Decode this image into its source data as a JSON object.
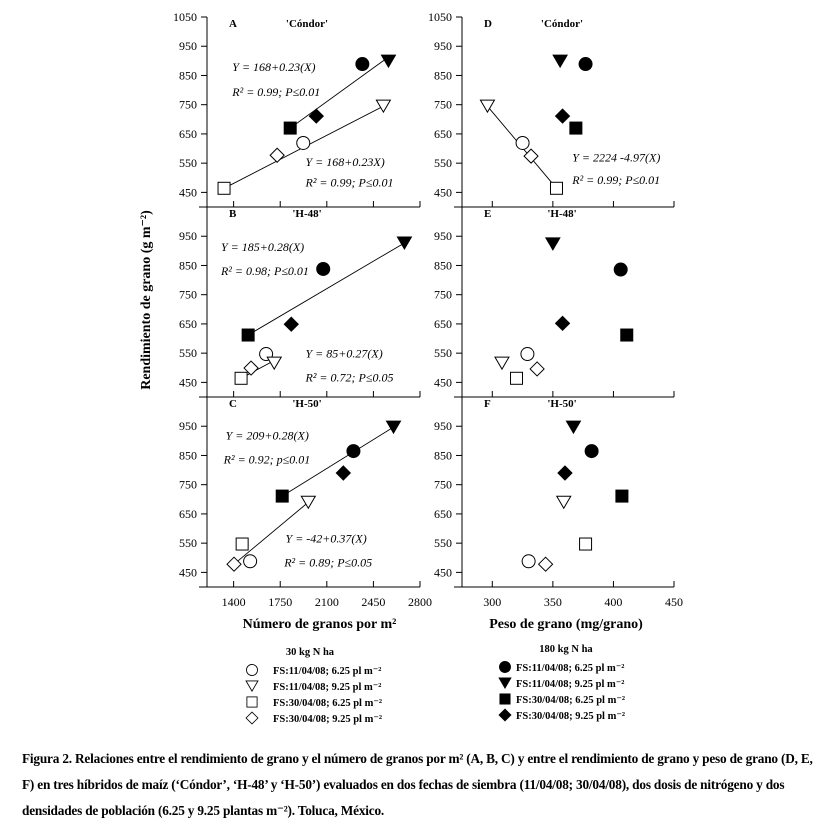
{
  "chart_data": {
    "type": "scatter",
    "ylabel": "Rendimiento de grano (g m⁻²)",
    "ylim": [
      400,
      1050
    ],
    "yticks": [
      450,
      550,
      650,
      750,
      850,
      950,
      1050
    ],
    "series_legend": {
      "low_n": {
        "title": "30 kg N ha",
        "entries": [
          {
            "marker": "circle-open",
            "label": "FS:11/04/08; 6.25 pl m⁻²"
          },
          {
            "marker": "triangle-open",
            "label": "FS:11/04/08; 9.25 pl m⁻²"
          },
          {
            "marker": "square-open",
            "label": "FS:30/04/08; 6.25 pl m⁻²"
          },
          {
            "marker": "diamond-open",
            "label": "FS:30/04/08; 9.25 pl m⁻²"
          }
        ]
      },
      "high_n": {
        "title": "180 kg N ha",
        "entries": [
          {
            "marker": "circle-filled",
            "label": "FS:11/04/08; 6.25 pl m⁻²"
          },
          {
            "marker": "triangle-filled",
            "label": "FS:11/04/08; 9.25 pl m⁻²"
          },
          {
            "marker": "square-filled",
            "label": "FS:30/04/08; 6.25 pl m⁻²"
          },
          {
            "marker": "diamond-filled",
            "label": "FS:30/04/08; 9.25 pl m⁻²"
          }
        ]
      }
    },
    "x_axes": {
      "left": {
        "xlabel": "Número de granos por m²",
        "xlim": [
          1200,
          2800
        ],
        "xticks": [
          1400,
          1750,
          2100,
          2450,
          2800
        ]
      },
      "right": {
        "xlabel": "Peso de grano (mg/grano)",
        "xlim": [
          275,
          450
        ],
        "xticks": [
          300,
          350,
          400,
          450
        ]
      }
    },
    "panels": [
      {
        "id": "A",
        "title": "'Cóndor'",
        "column": "left",
        "row": 0,
        "points": [
          {
            "marker": "circle-open",
            "x": 1923,
            "y": 619
          },
          {
            "marker": "triangle-open",
            "x": 2525,
            "y": 745
          },
          {
            "marker": "square-open",
            "x": 1328,
            "y": 464
          },
          {
            "marker": "diamond-open",
            "x": 1727,
            "y": 577
          },
          {
            "marker": "circle-filled",
            "x": 2367,
            "y": 889
          },
          {
            "marker": "triangle-filled",
            "x": 2563,
            "y": 899
          },
          {
            "marker": "square-filled",
            "x": 1825,
            "y": 670
          },
          {
            "marker": "diamond-filled",
            "x": 2021,
            "y": 711
          }
        ],
        "lines": [
          [
            1825,
            670,
            2563,
            913
          ],
          [
            1328,
            464,
            2525,
            745
          ]
        ],
        "annotations": [
          {
            "text": "Y = 168+0.23(X)",
            "ax": 1390,
            "ay": 865
          },
          {
            "text": "R² = 0.99; P≤0.01",
            "ax": 1390,
            "ay": 780
          },
          {
            "text": "Y = 168+0.23X)",
            "ax": 1940,
            "ay": 540
          },
          {
            "text": "R² = 0.99; P≤0.01",
            "ax": 1940,
            "ay": 470
          }
        ]
      },
      {
        "id": "B",
        "title": "'H-48'",
        "column": "left",
        "row": 1,
        "points": [
          {
            "marker": "circle-open",
            "x": 1644,
            "y": 547
          },
          {
            "marker": "triangle-open",
            "x": 1705,
            "y": 516
          },
          {
            "marker": "square-open",
            "x": 1456,
            "y": 464
          },
          {
            "marker": "diamond-open",
            "x": 1531,
            "y": 499
          },
          {
            "marker": "circle-filled",
            "x": 2073,
            "y": 838
          },
          {
            "marker": "triangle-filled",
            "x": 2683,
            "y": 927
          },
          {
            "marker": "square-filled",
            "x": 1509,
            "y": 612
          },
          {
            "marker": "diamond-filled",
            "x": 1833,
            "y": 649
          }
        ],
        "lines": [
          [
            1509,
            612,
            2683,
            927
          ],
          [
            1456,
            464,
            1705,
            525
          ]
        ],
        "annotations": [
          {
            "text": "Y = 185+0.28(X)",
            "ax": 1305,
            "ay": 900
          },
          {
            "text": "R² = 0.98; P≤0.01",
            "ax": 1305,
            "ay": 817
          },
          {
            "text": "Y = 85+0.27(X)",
            "ax": 1940,
            "ay": 535
          },
          {
            "text": "R² = 0.72; P≤0.05",
            "ax": 1940,
            "ay": 453
          }
        ]
      },
      {
        "id": "C",
        "title": "'H-50'",
        "column": "left",
        "row": 2,
        "points": [
          {
            "marker": "circle-open",
            "x": 1524,
            "y": 488
          },
          {
            "marker": "triangle-open",
            "x": 1961,
            "y": 690
          },
          {
            "marker": "square-open",
            "x": 1464,
            "y": 547
          },
          {
            "marker": "diamond-open",
            "x": 1403,
            "y": 478
          },
          {
            "marker": "circle-filled",
            "x": 2300,
            "y": 865
          },
          {
            "marker": "triangle-filled",
            "x": 2601,
            "y": 947
          },
          {
            "marker": "square-filled",
            "x": 1765,
            "y": 711
          },
          {
            "marker": "diamond-filled",
            "x": 2224,
            "y": 790
          }
        ],
        "lines": [
          [
            1765,
            711,
            2601,
            947
          ],
          [
            1403,
            478,
            1961,
            690
          ]
        ],
        "annotations": [
          {
            "text": "Y = 209+0.28(X)",
            "ax": 1340,
            "ay": 905
          },
          {
            "text": "R² = 0.92; p≤0.01",
            "ax": 1325,
            "ay": 822
          },
          {
            "text": "Y = -42+0.37(X)",
            "ax": 1790,
            "ay": 553
          },
          {
            "text": "R² = 0.89; P≤0.05",
            "ax": 1780,
            "ay": 470
          }
        ]
      },
      {
        "id": "D",
        "title": "'Cóndor'",
        "column": "right",
        "row": 0,
        "points": [
          {
            "marker": "circle-open",
            "x": 325,
            "y": 619
          },
          {
            "marker": "triangle-open",
            "x": 296,
            "y": 745
          },
          {
            "marker": "square-open",
            "x": 353,
            "y": 464
          },
          {
            "marker": "diamond-open",
            "x": 332,
            "y": 574
          },
          {
            "marker": "circle-filled",
            "x": 377,
            "y": 889
          },
          {
            "marker": "triangle-filled",
            "x": 356,
            "y": 899
          },
          {
            "marker": "square-filled",
            "x": 369,
            "y": 670
          },
          {
            "marker": "diamond-filled",
            "x": 358,
            "y": 711
          }
        ],
        "lines": [
          [
            296,
            745,
            353,
            464
          ]
        ],
        "annotations": [
          {
            "text": "Y = 2224 -4.97(X)",
            "ax": 366,
            "ay": 555
          },
          {
            "text": "R² = 0.99; P≤0.01",
            "ax": 366,
            "ay": 478
          }
        ]
      },
      {
        "id": "E",
        "title": "'H-48'",
        "column": "right",
        "row": 1,
        "points": [
          {
            "marker": "circle-open",
            "x": 329,
            "y": 547
          },
          {
            "marker": "triangle-open",
            "x": 308,
            "y": 516
          },
          {
            "marker": "square-open",
            "x": 320,
            "y": 464
          },
          {
            "marker": "diamond-open",
            "x": 337,
            "y": 496
          },
          {
            "marker": "circle-filled",
            "x": 406,
            "y": 836
          },
          {
            "marker": "triangle-filled",
            "x": 350,
            "y": 924
          },
          {
            "marker": "square-filled",
            "x": 411,
            "y": 612
          },
          {
            "marker": "diamond-filled",
            "x": 358,
            "y": 652
          }
        ],
        "lines": [],
        "annotations": []
      },
      {
        "id": "F",
        "title": "'H-50'",
        "column": "right",
        "row": 2,
        "points": [
          {
            "marker": "circle-open",
            "x": 330,
            "y": 488
          },
          {
            "marker": "triangle-open",
            "x": 359,
            "y": 690
          },
          {
            "marker": "square-open",
            "x": 377,
            "y": 547
          },
          {
            "marker": "diamond-open",
            "x": 344,
            "y": 478
          },
          {
            "marker": "circle-filled",
            "x": 382,
            "y": 865
          },
          {
            "marker": "triangle-filled",
            "x": 367,
            "y": 947
          },
          {
            "marker": "square-filled",
            "x": 407,
            "y": 711
          },
          {
            "marker": "diamond-filled",
            "x": 360,
            "y": 790
          }
        ],
        "lines": [],
        "annotations": []
      }
    ]
  },
  "caption": "Figura 2. Relaciones entre el rendimiento de grano y el número de granos por m² (A, B, C) y entre el rendimiento de grano y peso de grano (D, E, F) en tres híbridos de maíz (‘Cóndor’, ‘H-48’ y ‘H-50’) evaluados en dos fechas de siembra (11/04/08; 30/04/08), dos dosis de nitrógeno y dos densidades de población (6.25 y 9.25 plantas m⁻²). Toluca, México."
}
